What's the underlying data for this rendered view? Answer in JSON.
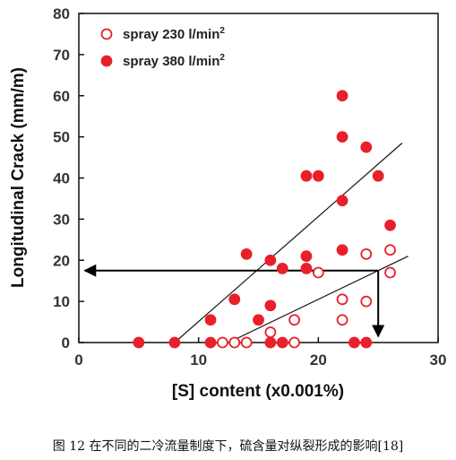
{
  "chart_data": {
    "type": "scatter",
    "xlabel": "[S] content (x0.001%)",
    "ylabel": "Longitudinal Crack (mm/m)",
    "xlim": [
      0,
      30
    ],
    "ylim": [
      0,
      80
    ],
    "x_ticks": [
      0,
      10,
      20,
      30
    ],
    "y_ticks": [
      0,
      10,
      20,
      30,
      40,
      50,
      60,
      70,
      80
    ],
    "grid": false,
    "legend_position": "top-left",
    "series": [
      {
        "name": "spray 230 l/min",
        "name_superscript": "2",
        "marker": "open-circle",
        "color": "#e8202a",
        "points": [
          [
            12,
            0
          ],
          [
            13,
            0
          ],
          [
            14,
            0
          ],
          [
            16,
            2.5
          ],
          [
            18,
            0
          ],
          [
            18,
            5.5
          ],
          [
            20,
            17
          ],
          [
            22,
            10.5
          ],
          [
            22,
            5.5
          ],
          [
            24,
            10
          ],
          [
            24,
            21.5
          ],
          [
            26,
            22.5
          ],
          [
            26,
            17
          ]
        ]
      },
      {
        "name": "spray 380 l/min",
        "name_superscript": "2",
        "marker": "filled-circle",
        "color": "#e8202a",
        "points": [
          [
            5,
            0
          ],
          [
            8,
            0
          ],
          [
            11,
            0
          ],
          [
            11,
            5.5
          ],
          [
            13,
            10.5
          ],
          [
            14,
            21.5
          ],
          [
            15,
            5.5
          ],
          [
            16,
            0
          ],
          [
            16,
            9
          ],
          [
            16,
            20
          ],
          [
            17,
            18
          ],
          [
            17,
            0
          ],
          [
            19,
            18
          ],
          [
            19,
            21
          ],
          [
            19,
            40.5
          ],
          [
            20,
            40.5
          ],
          [
            22,
            60
          ],
          [
            22,
            50
          ],
          [
            22,
            34.5
          ],
          [
            22,
            22.5
          ],
          [
            23,
            0
          ],
          [
            24,
            0
          ],
          [
            24,
            47.5
          ],
          [
            25,
            40.5
          ],
          [
            26,
            28.5
          ]
        ]
      }
    ],
    "trend_lines": [
      {
        "for_series": "spray 380 l/min",
        "from": [
          8,
          0
        ],
        "to": [
          27,
          48.5
        ]
      },
      {
        "for_series": "spray 230 l/min",
        "from": [
          12.5,
          0
        ],
        "to": [
          27.5,
          21
        ]
      }
    ],
    "annotation_arrows": [
      {
        "from": [
          25,
          17.5
        ],
        "to": [
          0.5,
          17.5
        ]
      },
      {
        "from": [
          25,
          17.5
        ],
        "to": [
          25,
          1.5
        ]
      }
    ]
  },
  "caption": "图 12  在不同的二冷流量制度下，硫含量对纵裂形成的影响[18]"
}
